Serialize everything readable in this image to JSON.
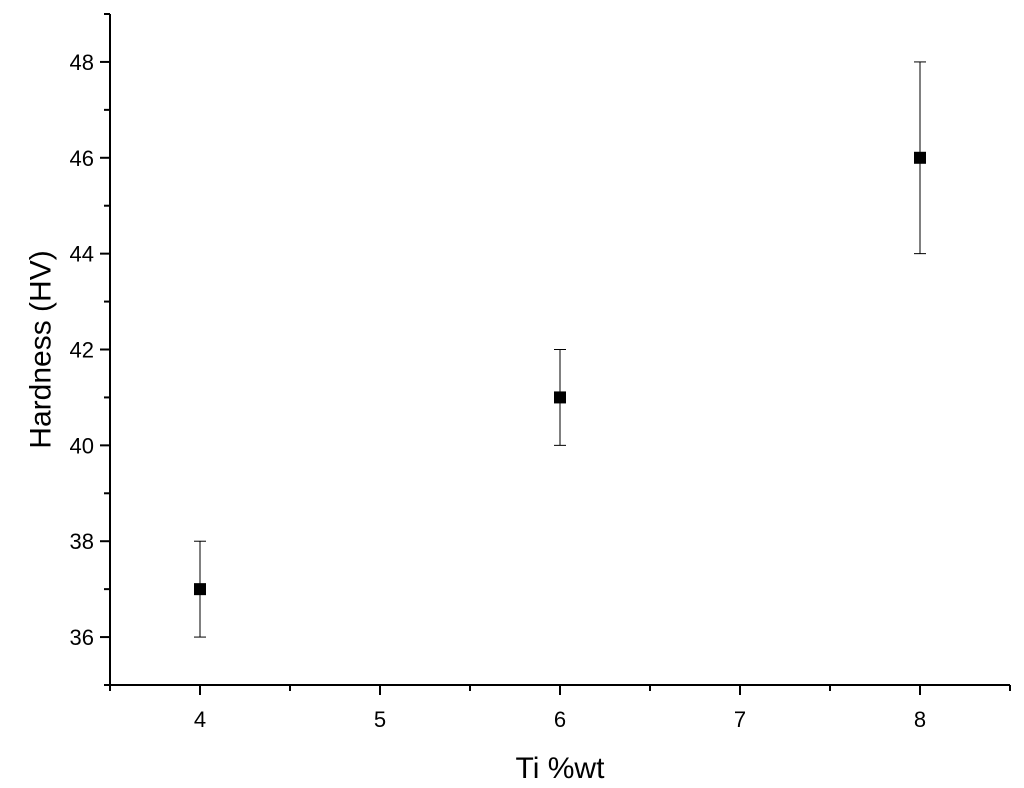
{
  "chart_data": {
    "type": "scatter",
    "xlabel": "Ti %wt",
    "ylabel": "Hardness (HV)",
    "xlim": [
      3.5,
      8.5
    ],
    "ylim": [
      35,
      49
    ],
    "x_ticks": [
      4,
      5,
      6,
      7,
      8
    ],
    "y_ticks": [
      36,
      38,
      40,
      42,
      44,
      46,
      48
    ],
    "grid": false,
    "legend": "none",
    "marker": "square",
    "color": "#000000",
    "points": [
      {
        "x": 4,
        "y": 37,
        "err_low": 36,
        "err_high": 38
      },
      {
        "x": 6,
        "y": 41,
        "err_low": 40,
        "err_high": 42
      },
      {
        "x": 8,
        "y": 46,
        "err_low": 44,
        "err_high": 48
      }
    ]
  }
}
